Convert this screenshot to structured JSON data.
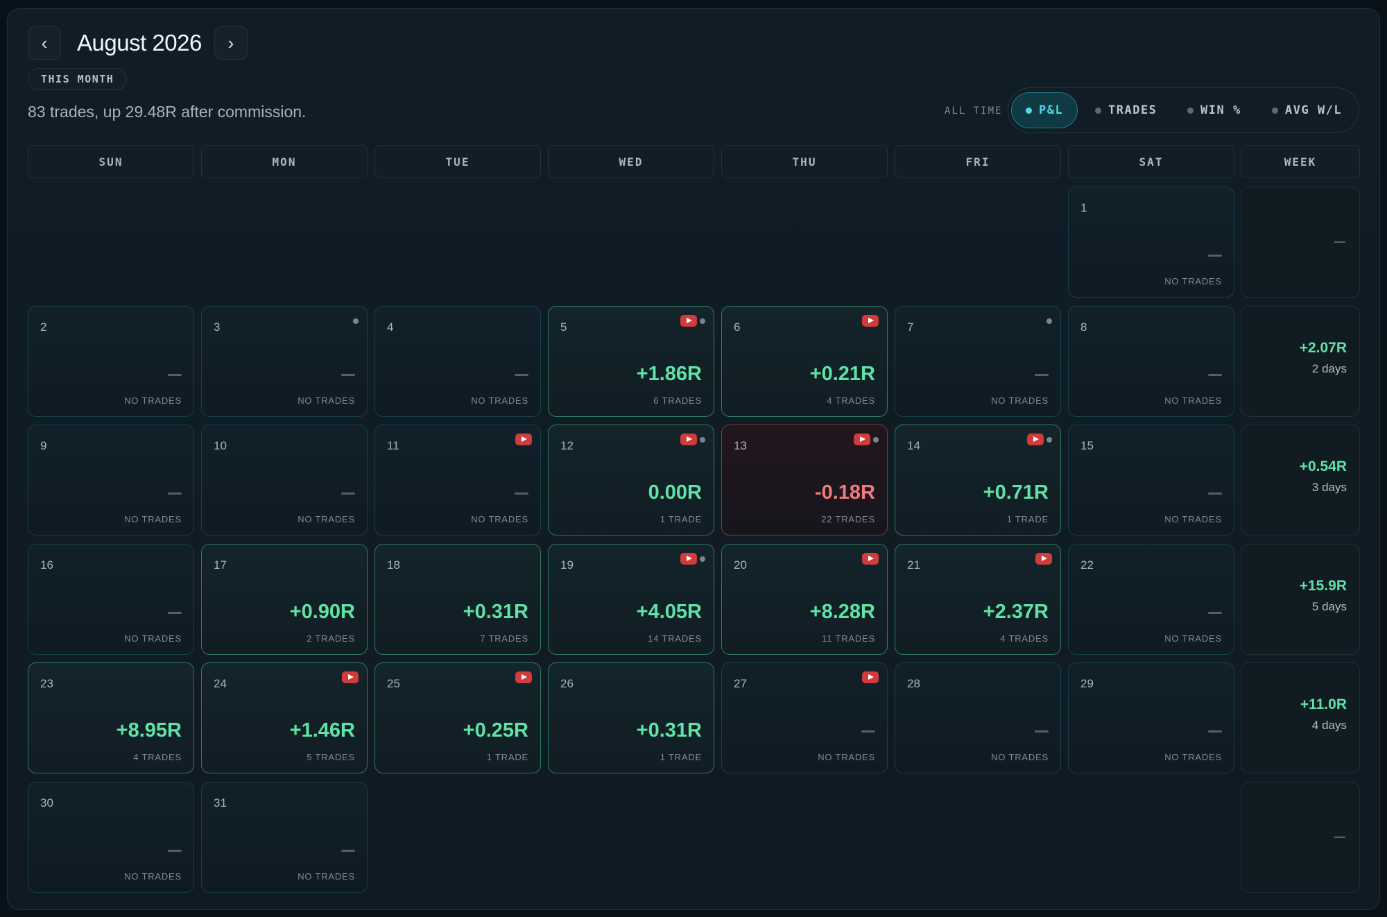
{
  "header": {
    "title": "August 2026",
    "prev_label": "‹",
    "next_label": "›",
    "badge": "THIS MONTH",
    "summary": "83 trades, up 29.48R after commission."
  },
  "metric_toggle": {
    "prefix": "ALL TIME",
    "options": [
      "P&L",
      "TRADES",
      "WIN %",
      "AVG W/L"
    ],
    "selected": "P&L"
  },
  "weekdays": [
    "SUN",
    "MON",
    "TUE",
    "WED",
    "THU",
    "FRI",
    "SAT",
    "WEEK"
  ],
  "colors": {
    "positive": "#5fe3a6",
    "negative": "#ef7b80",
    "accent": "#4fd8ea",
    "video": "#d23b3b"
  },
  "weeks": [
    {
      "days": [
        {
          "day": "1",
          "pnl": null,
          "trades": "NO TRADES",
          "video": false,
          "dot": false
        }
      ],
      "total": null,
      "days_count": null
    },
    {
      "days": [
        {
          "day": "2",
          "pnl": null,
          "trades": "NO TRADES",
          "video": false,
          "dot": false
        },
        {
          "day": "3",
          "pnl": null,
          "trades": "NO TRADES",
          "video": false,
          "dot": true
        },
        {
          "day": "4",
          "pnl": null,
          "trades": "NO TRADES",
          "video": false,
          "dot": false
        },
        {
          "day": "5",
          "pnl": "+1.86R",
          "trades": "6 TRADES",
          "video": true,
          "dot": true
        },
        {
          "day": "6",
          "pnl": "+0.21R",
          "trades": "4 TRADES",
          "video": true,
          "dot": false
        },
        {
          "day": "7",
          "pnl": null,
          "trades": "NO TRADES",
          "video": false,
          "dot": true
        },
        {
          "day": "8",
          "pnl": null,
          "trades": "NO TRADES",
          "video": false,
          "dot": false
        }
      ],
      "total": "+2.07R",
      "days_count": "2 days"
    },
    {
      "days": [
        {
          "day": "9",
          "pnl": null,
          "trades": "NO TRADES",
          "video": false,
          "dot": false
        },
        {
          "day": "10",
          "pnl": null,
          "trades": "NO TRADES",
          "video": false,
          "dot": false
        },
        {
          "day": "11",
          "pnl": null,
          "trades": "NO TRADES",
          "video": true,
          "dot": false
        },
        {
          "day": "12",
          "pnl": "0.00R",
          "trades": "1 TRADE",
          "video": true,
          "dot": true
        },
        {
          "day": "13",
          "pnl": "-0.18R",
          "trades": "22 TRADES",
          "video": true,
          "dot": true
        },
        {
          "day": "14",
          "pnl": "+0.71R",
          "trades": "1 TRADE",
          "video": true,
          "dot": true
        },
        {
          "day": "15",
          "pnl": null,
          "trades": "NO TRADES",
          "video": false,
          "dot": false
        }
      ],
      "total": "+0.54R",
      "days_count": "3 days"
    },
    {
      "days": [
        {
          "day": "16",
          "pnl": null,
          "trades": "NO TRADES",
          "video": false,
          "dot": false
        },
        {
          "day": "17",
          "pnl": "+0.90R",
          "trades": "2 TRADES",
          "video": false,
          "dot": false
        },
        {
          "day": "18",
          "pnl": "+0.31R",
          "trades": "7 TRADES",
          "video": false,
          "dot": false
        },
        {
          "day": "19",
          "pnl": "+4.05R",
          "trades": "14 TRADES",
          "video": true,
          "dot": true
        },
        {
          "day": "20",
          "pnl": "+8.28R",
          "trades": "11 TRADES",
          "video": true,
          "dot": false
        },
        {
          "day": "21",
          "pnl": "+2.37R",
          "trades": "4 TRADES",
          "video": true,
          "dot": false
        },
        {
          "day": "22",
          "pnl": null,
          "trades": "NO TRADES",
          "video": false,
          "dot": false
        }
      ],
      "total": "+15.9R",
      "days_count": "5 days"
    },
    {
      "days": [
        {
          "day": "23",
          "pnl": "+8.95R",
          "trades": "4 TRADES",
          "video": false,
          "dot": false
        },
        {
          "day": "24",
          "pnl": "+1.46R",
          "trades": "5 TRADES",
          "video": true,
          "dot": false
        },
        {
          "day": "25",
          "pnl": "+0.25R",
          "trades": "1 TRADE",
          "video": true,
          "dot": false
        },
        {
          "day": "26",
          "pnl": "+0.31R",
          "trades": "1 TRADE",
          "video": false,
          "dot": false
        },
        {
          "day": "27",
          "pnl": null,
          "trades": "NO TRADES",
          "video": true,
          "dot": false
        },
        {
          "day": "28",
          "pnl": null,
          "trades": "NO TRADES",
          "video": false,
          "dot": false
        },
        {
          "day": "29",
          "pnl": null,
          "trades": "NO TRADES",
          "video": false,
          "dot": false
        }
      ],
      "total": "+11.0R",
      "days_count": "4 days"
    },
    {
      "days": [
        {
          "day": "30",
          "pnl": null,
          "trades": "NO TRADES",
          "video": false,
          "dot": false
        },
        {
          "day": "31",
          "pnl": null,
          "trades": "NO TRADES",
          "video": false,
          "dot": false
        }
      ],
      "total": null,
      "days_count": null
    }
  ]
}
